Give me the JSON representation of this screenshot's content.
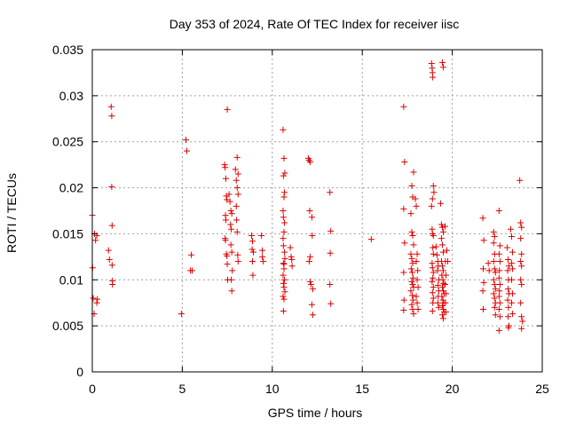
{
  "chart_data": {
    "type": "scatter",
    "title": "Day 353 of 2024, Rate Of TEC Index for receiver iisc",
    "xlabel": "GPS time / hours",
    "ylabel": "ROTI / TECUs",
    "xlim": [
      0,
      25
    ],
    "ylim": [
      0,
      0.035
    ],
    "xticks": [
      0,
      5,
      10,
      15,
      20,
      25
    ],
    "xtick_labels": [
      "0",
      "5",
      "10",
      "15",
      "20",
      "25"
    ],
    "yticks": [
      0,
      0.005,
      0.01,
      0.015,
      0.02,
      0.025,
      0.03,
      0.035
    ],
    "ytick_labels": [
      "0",
      "0.005",
      "0.01",
      "0.015",
      "0.02",
      "0.025",
      "0.03",
      "0.035"
    ],
    "grid": true,
    "marker": "+",
    "color": "#e00000",
    "series": [
      {
        "name": "iisc",
        "points": [
          [
            0.0,
            0.017
          ],
          [
            0.02,
            0.0113
          ],
          [
            0.05,
            0.008
          ],
          [
            0.1,
            0.0063
          ],
          [
            0.12,
            0.015
          ],
          [
            0.18,
            0.0143
          ],
          [
            0.25,
            0.0075
          ],
          [
            0.25,
            0.0148
          ],
          [
            0.28,
            0.0079
          ],
          [
            0.9,
            0.0132
          ],
          [
            0.95,
            0.0122
          ],
          [
            1.05,
            0.0288
          ],
          [
            1.08,
            0.0278
          ],
          [
            1.08,
            0.0201
          ],
          [
            1.1,
            0.0159
          ],
          [
            1.1,
            0.0116
          ],
          [
            1.12,
            0.0099
          ],
          [
            1.12,
            0.0095
          ],
          [
            4.95,
            0.0063
          ],
          [
            5.2,
            0.0252
          ],
          [
            5.25,
            0.024
          ],
          [
            5.5,
            0.0127
          ],
          [
            5.45,
            0.011
          ],
          [
            5.55,
            0.011
          ],
          [
            7.35,
            0.0225
          ],
          [
            7.38,
            0.0222
          ],
          [
            7.42,
            0.021
          ],
          [
            7.45,
            0.0191
          ],
          [
            7.48,
            0.0187
          ],
          [
            7.4,
            0.017
          ],
          [
            7.42,
            0.0165
          ],
          [
            7.38,
            0.0145
          ],
          [
            7.4,
            0.0143
          ],
          [
            7.45,
            0.0128
          ],
          [
            7.48,
            0.0126
          ],
          [
            7.5,
            0.0117
          ],
          [
            7.52,
            0.01
          ],
          [
            7.5,
            0.0285
          ],
          [
            7.6,
            0.0193
          ],
          [
            7.65,
            0.0185
          ],
          [
            7.7,
            0.0175
          ],
          [
            7.75,
            0.0172
          ],
          [
            7.68,
            0.016
          ],
          [
            7.72,
            0.0155
          ],
          [
            7.7,
            0.0138
          ],
          [
            7.75,
            0.013
          ],
          [
            7.78,
            0.011
          ],
          [
            7.72,
            0.01
          ],
          [
            7.75,
            0.0088
          ],
          [
            7.95,
            0.022
          ],
          [
            8.0,
            0.0208
          ],
          [
            8.05,
            0.0233
          ],
          [
            8.1,
            0.0215
          ],
          [
            8.05,
            0.02
          ],
          [
            8.1,
            0.0193
          ],
          [
            8.0,
            0.018
          ],
          [
            8.02,
            0.0165
          ],
          [
            8.05,
            0.0152
          ],
          [
            8.08,
            0.0127
          ],
          [
            8.1,
            0.012
          ],
          [
            8.85,
            0.0148
          ],
          [
            8.9,
            0.0142
          ],
          [
            8.88,
            0.0133
          ],
          [
            8.95,
            0.013
          ],
          [
            8.9,
            0.012
          ],
          [
            8.92,
            0.0105
          ],
          [
            9.4,
            0.0148
          ],
          [
            9.45,
            0.0132
          ],
          [
            9.45,
            0.0125
          ],
          [
            9.5,
            0.012
          ],
          [
            10.6,
            0.0263
          ],
          [
            10.65,
            0.0232
          ],
          [
            10.7,
            0.0216
          ],
          [
            10.62,
            0.0213
          ],
          [
            10.68,
            0.0195
          ],
          [
            10.65,
            0.019
          ],
          [
            10.6,
            0.0175
          ],
          [
            10.62,
            0.0168
          ],
          [
            10.68,
            0.0162
          ],
          [
            10.65,
            0.0152
          ],
          [
            10.6,
            0.0145
          ],
          [
            10.62,
            0.0137
          ],
          [
            10.68,
            0.013
          ],
          [
            10.7,
            0.0123
          ],
          [
            10.62,
            0.0118
          ],
          [
            10.65,
            0.0112
          ],
          [
            10.6,
            0.0105
          ],
          [
            10.68,
            0.01
          ],
          [
            10.62,
            0.0096
          ],
          [
            10.65,
            0.0092
          ],
          [
            10.7,
            0.0087
          ],
          [
            10.6,
            0.0082
          ],
          [
            10.65,
            0.0079
          ],
          [
            10.62,
            0.0066
          ],
          [
            10.65,
            0.0117
          ],
          [
            11.0,
            0.0135
          ],
          [
            11.05,
            0.0125
          ],
          [
            11.08,
            0.0122
          ],
          [
            11.1,
            0.0115
          ],
          [
            12.0,
            0.0232
          ],
          [
            12.05,
            0.023
          ],
          [
            12.1,
            0.0228
          ],
          [
            12.08,
            0.0175
          ],
          [
            12.1,
            0.0125
          ],
          [
            12.05,
            0.012
          ],
          [
            12.1,
            0.0098
          ],
          [
            12.15,
            0.0095
          ],
          [
            12.2,
            0.0168
          ],
          [
            12.22,
            0.0148
          ],
          [
            12.25,
            0.009
          ],
          [
            12.2,
            0.0073
          ],
          [
            12.25,
            0.0062
          ],
          [
            13.2,
            0.0195
          ],
          [
            13.25,
            0.0153
          ],
          [
            13.22,
            0.0129
          ],
          [
            13.2,
            0.0095
          ],
          [
            13.25,
            0.0074
          ],
          [
            15.5,
            0.0144
          ],
          [
            17.3,
            0.0288
          ],
          [
            17.35,
            0.0228
          ],
          [
            17.3,
            0.0177
          ],
          [
            17.35,
            0.014
          ],
          [
            17.3,
            0.0108
          ],
          [
            17.32,
            0.0078
          ],
          [
            17.3,
            0.0067
          ],
          [
            17.75,
            0.0202
          ],
          [
            17.8,
            0.019
          ],
          [
            17.7,
            0.0172
          ],
          [
            17.85,
            0.0217
          ],
          [
            17.75,
            0.0152
          ],
          [
            17.8,
            0.0148
          ],
          [
            17.85,
            0.0138
          ],
          [
            17.7,
            0.0128
          ],
          [
            17.75,
            0.0123
          ],
          [
            17.8,
            0.0118
          ],
          [
            17.72,
            0.0112
          ],
          [
            17.78,
            0.0108
          ],
          [
            17.82,
            0.0102
          ],
          [
            17.75,
            0.0098
          ],
          [
            17.8,
            0.0095
          ],
          [
            17.85,
            0.0092
          ],
          [
            17.7,
            0.0088
          ],
          [
            17.78,
            0.0083
          ],
          [
            17.82,
            0.0078
          ],
          [
            17.75,
            0.0073
          ],
          [
            17.8,
            0.0068
          ],
          [
            17.85,
            0.0063
          ],
          [
            17.95,
            0.0188
          ],
          [
            18.0,
            0.018
          ],
          [
            18.05,
            0.0128
          ],
          [
            18.0,
            0.012
          ],
          [
            18.08,
            0.011
          ],
          [
            18.05,
            0.01
          ],
          [
            18.1,
            0.0092
          ],
          [
            18.0,
            0.0082
          ],
          [
            18.05,
            0.0075
          ],
          [
            18.1,
            0.0068
          ],
          [
            18.85,
            0.0335
          ],
          [
            18.88,
            0.033
          ],
          [
            18.9,
            0.0325
          ],
          [
            18.92,
            0.032
          ],
          [
            19.45,
            0.0336
          ],
          [
            19.5,
            0.0331
          ],
          [
            18.95,
            0.0202
          ],
          [
            18.98,
            0.0195
          ],
          [
            18.9,
            0.0188
          ],
          [
            18.85,
            0.018
          ],
          [
            18.88,
            0.0155
          ],
          [
            18.9,
            0.015
          ],
          [
            18.95,
            0.0148
          ],
          [
            18.92,
            0.0135
          ],
          [
            18.95,
            0.0128
          ],
          [
            18.88,
            0.0118
          ],
          [
            18.9,
            0.0113
          ],
          [
            18.95,
            0.0108
          ],
          [
            18.92,
            0.0102
          ],
          [
            18.88,
            0.0098
          ],
          [
            18.95,
            0.0092
          ],
          [
            18.9,
            0.0086
          ],
          [
            18.95,
            0.008
          ],
          [
            18.92,
            0.0075
          ],
          [
            18.9,
            0.0066
          ],
          [
            19.1,
            0.0136
          ],
          [
            19.15,
            0.0127
          ],
          [
            19.2,
            0.012
          ],
          [
            19.22,
            0.0115
          ],
          [
            19.18,
            0.011
          ],
          [
            19.25,
            0.01
          ],
          [
            19.2,
            0.0094
          ],
          [
            19.25,
            0.0088
          ],
          [
            19.22,
            0.0082
          ],
          [
            19.2,
            0.0075
          ],
          [
            19.25,
            0.007
          ],
          [
            19.35,
            0.0183
          ],
          [
            19.4,
            0.016
          ],
          [
            19.45,
            0.0157
          ],
          [
            19.5,
            0.0152
          ],
          [
            19.4,
            0.0145
          ],
          [
            19.45,
            0.0138
          ],
          [
            19.5,
            0.013
          ],
          [
            19.4,
            0.012
          ],
          [
            19.45,
            0.0115
          ],
          [
            19.5,
            0.011
          ],
          [
            19.42,
            0.0105
          ],
          [
            19.48,
            0.01
          ],
          [
            19.52,
            0.0096
          ],
          [
            19.45,
            0.0092
          ],
          [
            19.5,
            0.0088
          ],
          [
            19.55,
            0.0085
          ],
          [
            19.42,
            0.0082
          ],
          [
            19.48,
            0.0078
          ],
          [
            19.52,
            0.0075
          ],
          [
            19.45,
            0.0072
          ],
          [
            19.5,
            0.0068
          ],
          [
            19.55,
            0.0065
          ],
          [
            19.45,
            0.0062
          ],
          [
            19.5,
            0.0058
          ],
          [
            19.6,
            0.0158
          ],
          [
            19.62,
            0.012
          ],
          [
            19.65,
            0.0105
          ],
          [
            19.6,
            0.0095
          ],
          [
            19.65,
            0.0085
          ],
          [
            19.62,
            0.0075
          ],
          [
            19.65,
            0.0065
          ],
          [
            19.7,
            0.0132
          ],
          [
            19.75,
            0.012
          ],
          [
            21.7,
            0.0167
          ],
          [
            21.75,
            0.0143
          ],
          [
            21.72,
            0.0112
          ],
          [
            21.75,
            0.0097
          ],
          [
            21.7,
            0.0088
          ],
          [
            21.72,
            0.0068
          ],
          [
            22.0,
            0.0118
          ],
          [
            22.05,
            0.011
          ],
          [
            22.3,
            0.0152
          ],
          [
            22.35,
            0.0147
          ],
          [
            22.3,
            0.014
          ],
          [
            22.35,
            0.0128
          ],
          [
            22.3,
            0.012
          ],
          [
            22.35,
            0.0112
          ],
          [
            22.4,
            0.0108
          ],
          [
            22.3,
            0.01
          ],
          [
            22.35,
            0.0095
          ],
          [
            22.4,
            0.009
          ],
          [
            22.3,
            0.0085
          ],
          [
            22.35,
            0.008
          ],
          [
            22.4,
            0.0075
          ],
          [
            22.35,
            0.007
          ],
          [
            22.4,
            0.0062
          ],
          [
            22.6,
            0.0175
          ],
          [
            22.65,
            0.0137
          ],
          [
            22.6,
            0.0128
          ],
          [
            22.65,
            0.012
          ],
          [
            22.62,
            0.011
          ],
          [
            22.6,
            0.0102
          ],
          [
            22.65,
            0.0095
          ],
          [
            22.62,
            0.0088
          ],
          [
            22.6,
            0.0082
          ],
          [
            22.65,
            0.0075
          ],
          [
            22.6,
            0.0068
          ],
          [
            22.65,
            0.006
          ],
          [
            22.6,
            0.0045
          ],
          [
            23.05,
            0.0135
          ],
          [
            23.1,
            0.0122
          ],
          [
            23.15,
            0.0115
          ],
          [
            23.08,
            0.011
          ],
          [
            23.12,
            0.01
          ],
          [
            23.1,
            0.009
          ],
          [
            23.15,
            0.0085
          ],
          [
            23.08,
            0.0078
          ],
          [
            23.12,
            0.007
          ],
          [
            23.1,
            0.006
          ],
          [
            23.15,
            0.005
          ],
          [
            23.12,
            0.0048
          ],
          [
            23.25,
            0.0155
          ],
          [
            23.3,
            0.0147
          ],
          [
            23.35,
            0.013
          ],
          [
            23.3,
            0.0118
          ],
          [
            23.35,
            0.0112
          ],
          [
            23.3,
            0.01
          ],
          [
            23.35,
            0.0085
          ],
          [
            23.3,
            0.0075
          ],
          [
            23.35,
            0.0063
          ],
          [
            23.75,
            0.0208
          ],
          [
            23.8,
            0.0162
          ],
          [
            23.85,
            0.0157
          ],
          [
            23.8,
            0.0145
          ],
          [
            23.85,
            0.0128
          ],
          [
            23.8,
            0.012
          ],
          [
            23.85,
            0.0115
          ],
          [
            23.8,
            0.01
          ],
          [
            23.85,
            0.0095
          ],
          [
            23.8,
            0.0075
          ],
          [
            23.85,
            0.006
          ],
          [
            23.9,
            0.0055
          ],
          [
            23.85,
            0.0047
          ]
        ]
      }
    ]
  }
}
